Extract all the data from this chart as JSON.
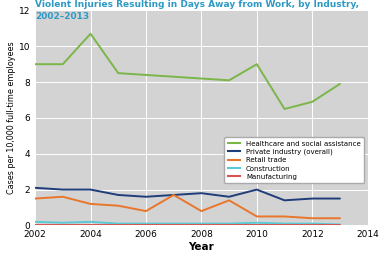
{
  "title_line1": "Violent Injuries Resulting in Days Away from Work, by Industry,",
  "title_line2": "2002–2013",
  "title_color": "#2e9ac4",
  "xlabel": "Year",
  "ylabel": "Cases per 10,000 full-time employees",
  "xlim": [
    2002,
    2014
  ],
  "ylim": [
    0,
    12
  ],
  "yticks": [
    0,
    2,
    4,
    6,
    8,
    10,
    12
  ],
  "xticks": [
    2002,
    2004,
    2006,
    2008,
    2010,
    2012,
    2014
  ],
  "background_color": "#d3d3d3",
  "fig_bg": "#ffffff",
  "years": [
    2002,
    2003,
    2004,
    2005,
    2006,
    2007,
    2008,
    2009,
    2010,
    2011,
    2012,
    2013
  ],
  "series": [
    {
      "name": "Healthcare and social assistance",
      "values": [
        9.0,
        9.0,
        10.7,
        8.5,
        8.4,
        8.3,
        8.2,
        8.1,
        9.0,
        6.5,
        6.9,
        7.9
      ],
      "color": "#7ab648",
      "linewidth": 1.4
    },
    {
      "name": "Private industry (overall)",
      "values": [
        2.1,
        2.0,
        2.0,
        1.7,
        1.6,
        1.7,
        1.8,
        1.6,
        2.0,
        1.4,
        1.5,
        1.5
      ],
      "color": "#1f3d7a",
      "linewidth": 1.4
    },
    {
      "name": "Retail trade",
      "values": [
        1.5,
        1.6,
        1.2,
        1.1,
        0.8,
        1.7,
        0.8,
        1.4,
        0.5,
        0.5,
        0.4,
        0.4
      ],
      "color": "#e8762b",
      "linewidth": 1.4
    },
    {
      "name": "Construction",
      "values": [
        0.2,
        0.15,
        0.2,
        0.1,
        0.1,
        0.1,
        0.1,
        0.1,
        0.15,
        0.1,
        0.1,
        0.05
      ],
      "color": "#5bc8d4",
      "linewidth": 1.4
    },
    {
      "name": "Manufacturing",
      "values": [
        0.05,
        0.05,
        0.05,
        0.05,
        0.05,
        0.05,
        0.05,
        0.05,
        0.05,
        0.05,
        0.05,
        0.05
      ],
      "color": "#d9534f",
      "linewidth": 1.4
    }
  ]
}
